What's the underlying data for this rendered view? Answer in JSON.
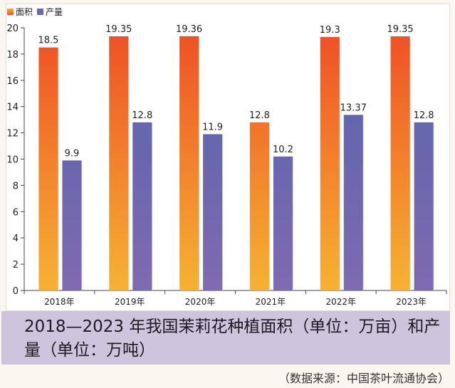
{
  "chart_data": {
    "type": "bar",
    "title": "2018—2023 年我国茉莉花种植面积（单位：万亩）和产量（单位：万吨）",
    "xlabel": "",
    "ylabel": "",
    "ylim": [
      0,
      20
    ],
    "yticks": [
      0,
      2,
      4,
      6,
      8,
      10,
      12,
      14,
      16,
      18,
      20
    ],
    "categories": [
      "2018年",
      "2019年",
      "2020年",
      "2021年",
      "2022年",
      "2023年"
    ],
    "series": [
      {
        "name": "面积",
        "values": [
          18.5,
          19.35,
          19.36,
          12.8,
          19.3,
          19.35
        ],
        "labels": [
          "18.5",
          "19.35",
          "19.36",
          "12.8",
          "19.3",
          "19.35"
        ],
        "color_top": "#ee4f25",
        "color_bottom": "#f6b233"
      },
      {
        "name": "产量",
        "values": [
          9.9,
          12.8,
          11.9,
          10.2,
          13.37,
          12.8
        ],
        "labels": [
          "9.9",
          "12.8",
          "11.9",
          "10.2",
          "13.37",
          "12.8"
        ],
        "color_top": "#5463ad",
        "color_bottom": "#7f6ab0"
      }
    ],
    "legend_position": "top-left",
    "grid": false,
    "source": "（数据来源：中国茶叶流通协会）"
  },
  "legend": [
    {
      "label": "面积",
      "color": "#f27a2a"
    },
    {
      "label": "产量",
      "color": "#6a68b0"
    }
  ],
  "caption": {
    "text": "2018—2023 年我国茉莉花种植面积（单位：万亩）和产量（单位：万吨）"
  },
  "source": "（数据来源：中国茶叶流通协会）"
}
